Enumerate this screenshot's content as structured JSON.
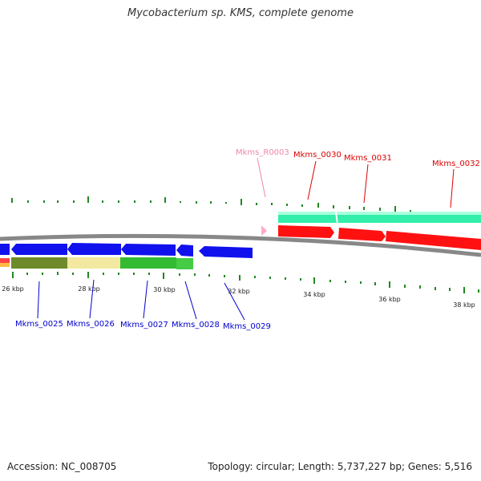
{
  "title": "Mycobacterium sp. KMS, complete genome",
  "footer": {
    "accession": "Accession: NC_008705",
    "summary": "Topology: circular; Length: 5,737,227 bp; Genes: 5,516"
  },
  "colors": {
    "backbone": "#888888",
    "cds_forward": "#ff0000",
    "cds_reverse": "#0000ff",
    "rrna": "#ffaacc",
    "label_forward": "#dd0000",
    "label_reverse": "#0000cc",
    "label_rna": "#ee88aa",
    "gc_skew": "#228822"
  },
  "scale": {
    "labels": [
      "26 kbp",
      "28 kbp",
      "30 kbp",
      "32 kbp",
      "34 kbp",
      "36 kbp",
      "38 kbp"
    ]
  },
  "genes_forward": [
    {
      "name": "Mkms_R0003",
      "type": "rna"
    },
    {
      "name": "Mkms_0030",
      "type": "cds"
    },
    {
      "name": "Mkms_0031",
      "type": "cds"
    },
    {
      "name": "Mkms_0032",
      "type": "cds"
    }
  ],
  "genes_reverse": [
    {
      "name": "Mkms_0025"
    },
    {
      "name": "Mkms_0026"
    },
    {
      "name": "Mkms_0027"
    },
    {
      "name": "Mkms_0028"
    },
    {
      "name": "Mkms_0029"
    }
  ]
}
